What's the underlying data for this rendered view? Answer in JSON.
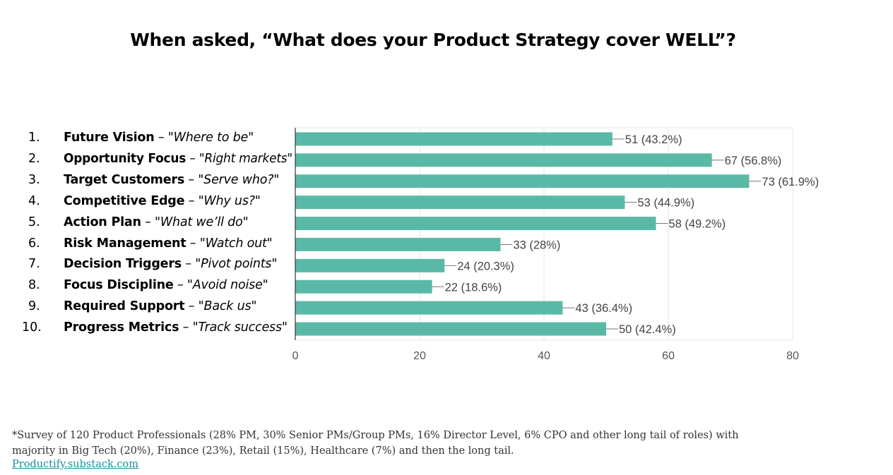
{
  "title": "When asked, “What does your Product Strategy cover WELL”?",
  "chart_data": {
    "type": "bar",
    "orientation": "horizontal",
    "categories": [
      {
        "num": "1.",
        "name": "Future Vision",
        "sep": " – ",
        "quote": "\"Where to be\""
      },
      {
        "num": "2.",
        "name": "Opportunity Focus",
        "sep": " – ",
        "quote": "\"Right markets\""
      },
      {
        "num": "3.",
        "name": "Target Customers",
        "sep": " – ",
        "quote": "\"Serve who?\""
      },
      {
        "num": "4.",
        "name": "Competitive Edge",
        "sep": " – ",
        "quote": "\"Why us?\""
      },
      {
        "num": "5.",
        "name": "Action Plan",
        "sep": " – ",
        "quote": "\"What we’ll do\""
      },
      {
        "num": "6.",
        "name": "Risk Management",
        "sep": " – ",
        "quote": "\"Watch out\""
      },
      {
        "num": "7.",
        "name": "Decision Triggers",
        "sep": " – ",
        "quote": "\"Pivot points\""
      },
      {
        "num": "8.",
        "name": "Focus Discipline",
        "sep": " – ",
        "quote": "\"Avoid noise\""
      },
      {
        "num": "9.",
        "name": "Required Support",
        "sep": " – ",
        "quote": "\"Back us\""
      },
      {
        "num": "10.",
        "name": "Progress Metrics",
        "sep": " – ",
        "quote": "\"Track success\""
      }
    ],
    "values": [
      51,
      67,
      73,
      53,
      58,
      33,
      24,
      22,
      43,
      50
    ],
    "data_labels": [
      "51 (43.2%)",
      "67 (56.8%)",
      "73 (61.9%)",
      "53 (44.9%)",
      "58 (49.2%)",
      "33 (28%)",
      "24 (20.3%)",
      "22 (18.6%)",
      "43 (36.4%)",
      "50 (42.4%)"
    ],
    "xlim": [
      0,
      80
    ],
    "xticks": [
      0,
      20,
      40,
      60,
      80
    ],
    "grid": true,
    "bar_color": "#5ab9a6"
  },
  "footnote": {
    "line1": "*Survey of 120 Product Professionals (28% PM, 30% Senior PMs/Group PMs, 16% Director Level, 6% CPO and other long tail of roles) with",
    "line2": "majority in Big Tech (20%), Finance (23%), Retail (15%), Healthcare (7%) and then the long tail.",
    "link": "Productify.substack.com"
  }
}
